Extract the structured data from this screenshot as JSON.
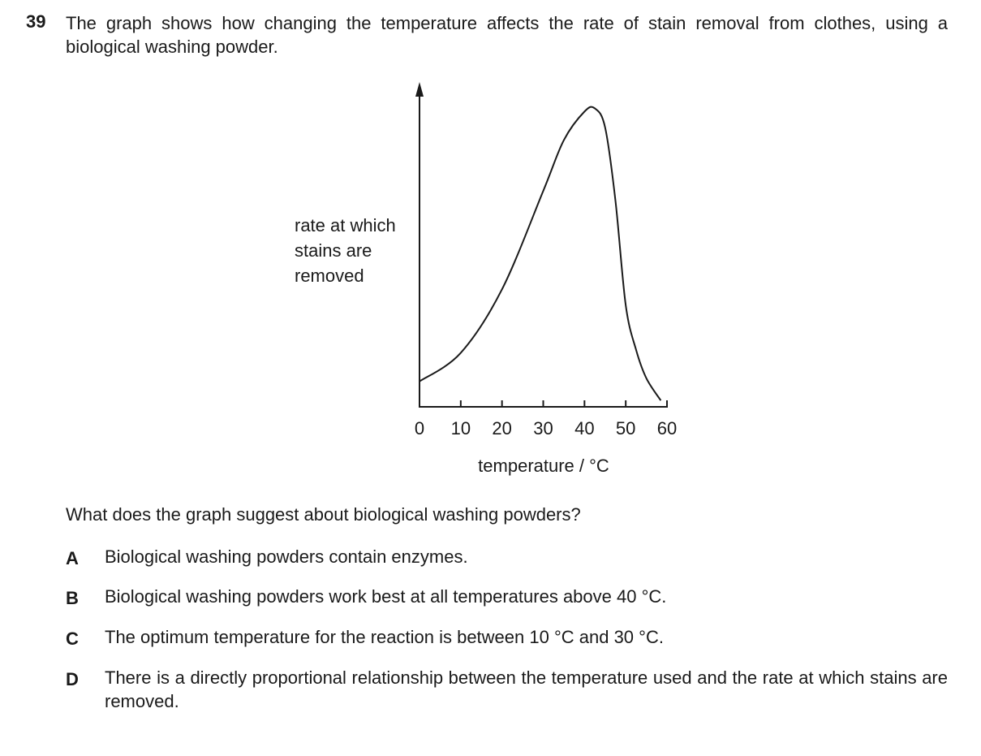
{
  "question": {
    "number": "39",
    "text": "The graph shows how changing the temperature affects the rate of stain removal from clothes, using a biological washing powder.",
    "prompt": "What does the graph suggest about biological washing powders?"
  },
  "chart_data": {
    "type": "line",
    "y_label": "rate at which stains are removed",
    "x_label": "temperature / °C",
    "x": [
      0,
      10,
      20,
      30,
      35,
      40,
      42.5,
      45,
      47.5,
      50,
      52.5,
      55,
      58.5
    ],
    "values": [
      8,
      17,
      37,
      68,
      84,
      93,
      94,
      88,
      65,
      32,
      18,
      9,
      2
    ],
    "color": "#1a1a1a",
    "xlim": [
      0,
      60
    ],
    "xticks": [
      0,
      10,
      20,
      30,
      40,
      50,
      60
    ],
    "ylim": [
      0,
      100
    ]
  },
  "options": [
    {
      "letter": "A",
      "text": "Biological washing powders contain enzymes."
    },
    {
      "letter": "B",
      "text": "Biological washing powders work best at all temperatures above 40 °C."
    },
    {
      "letter": "C",
      "text": "The optimum temperature for the reaction is between 10 °C and 30 °C."
    },
    {
      "letter": "D",
      "text": "There is a directly proportional relationship between the temperature used and the rate at which stains are removed."
    }
  ]
}
